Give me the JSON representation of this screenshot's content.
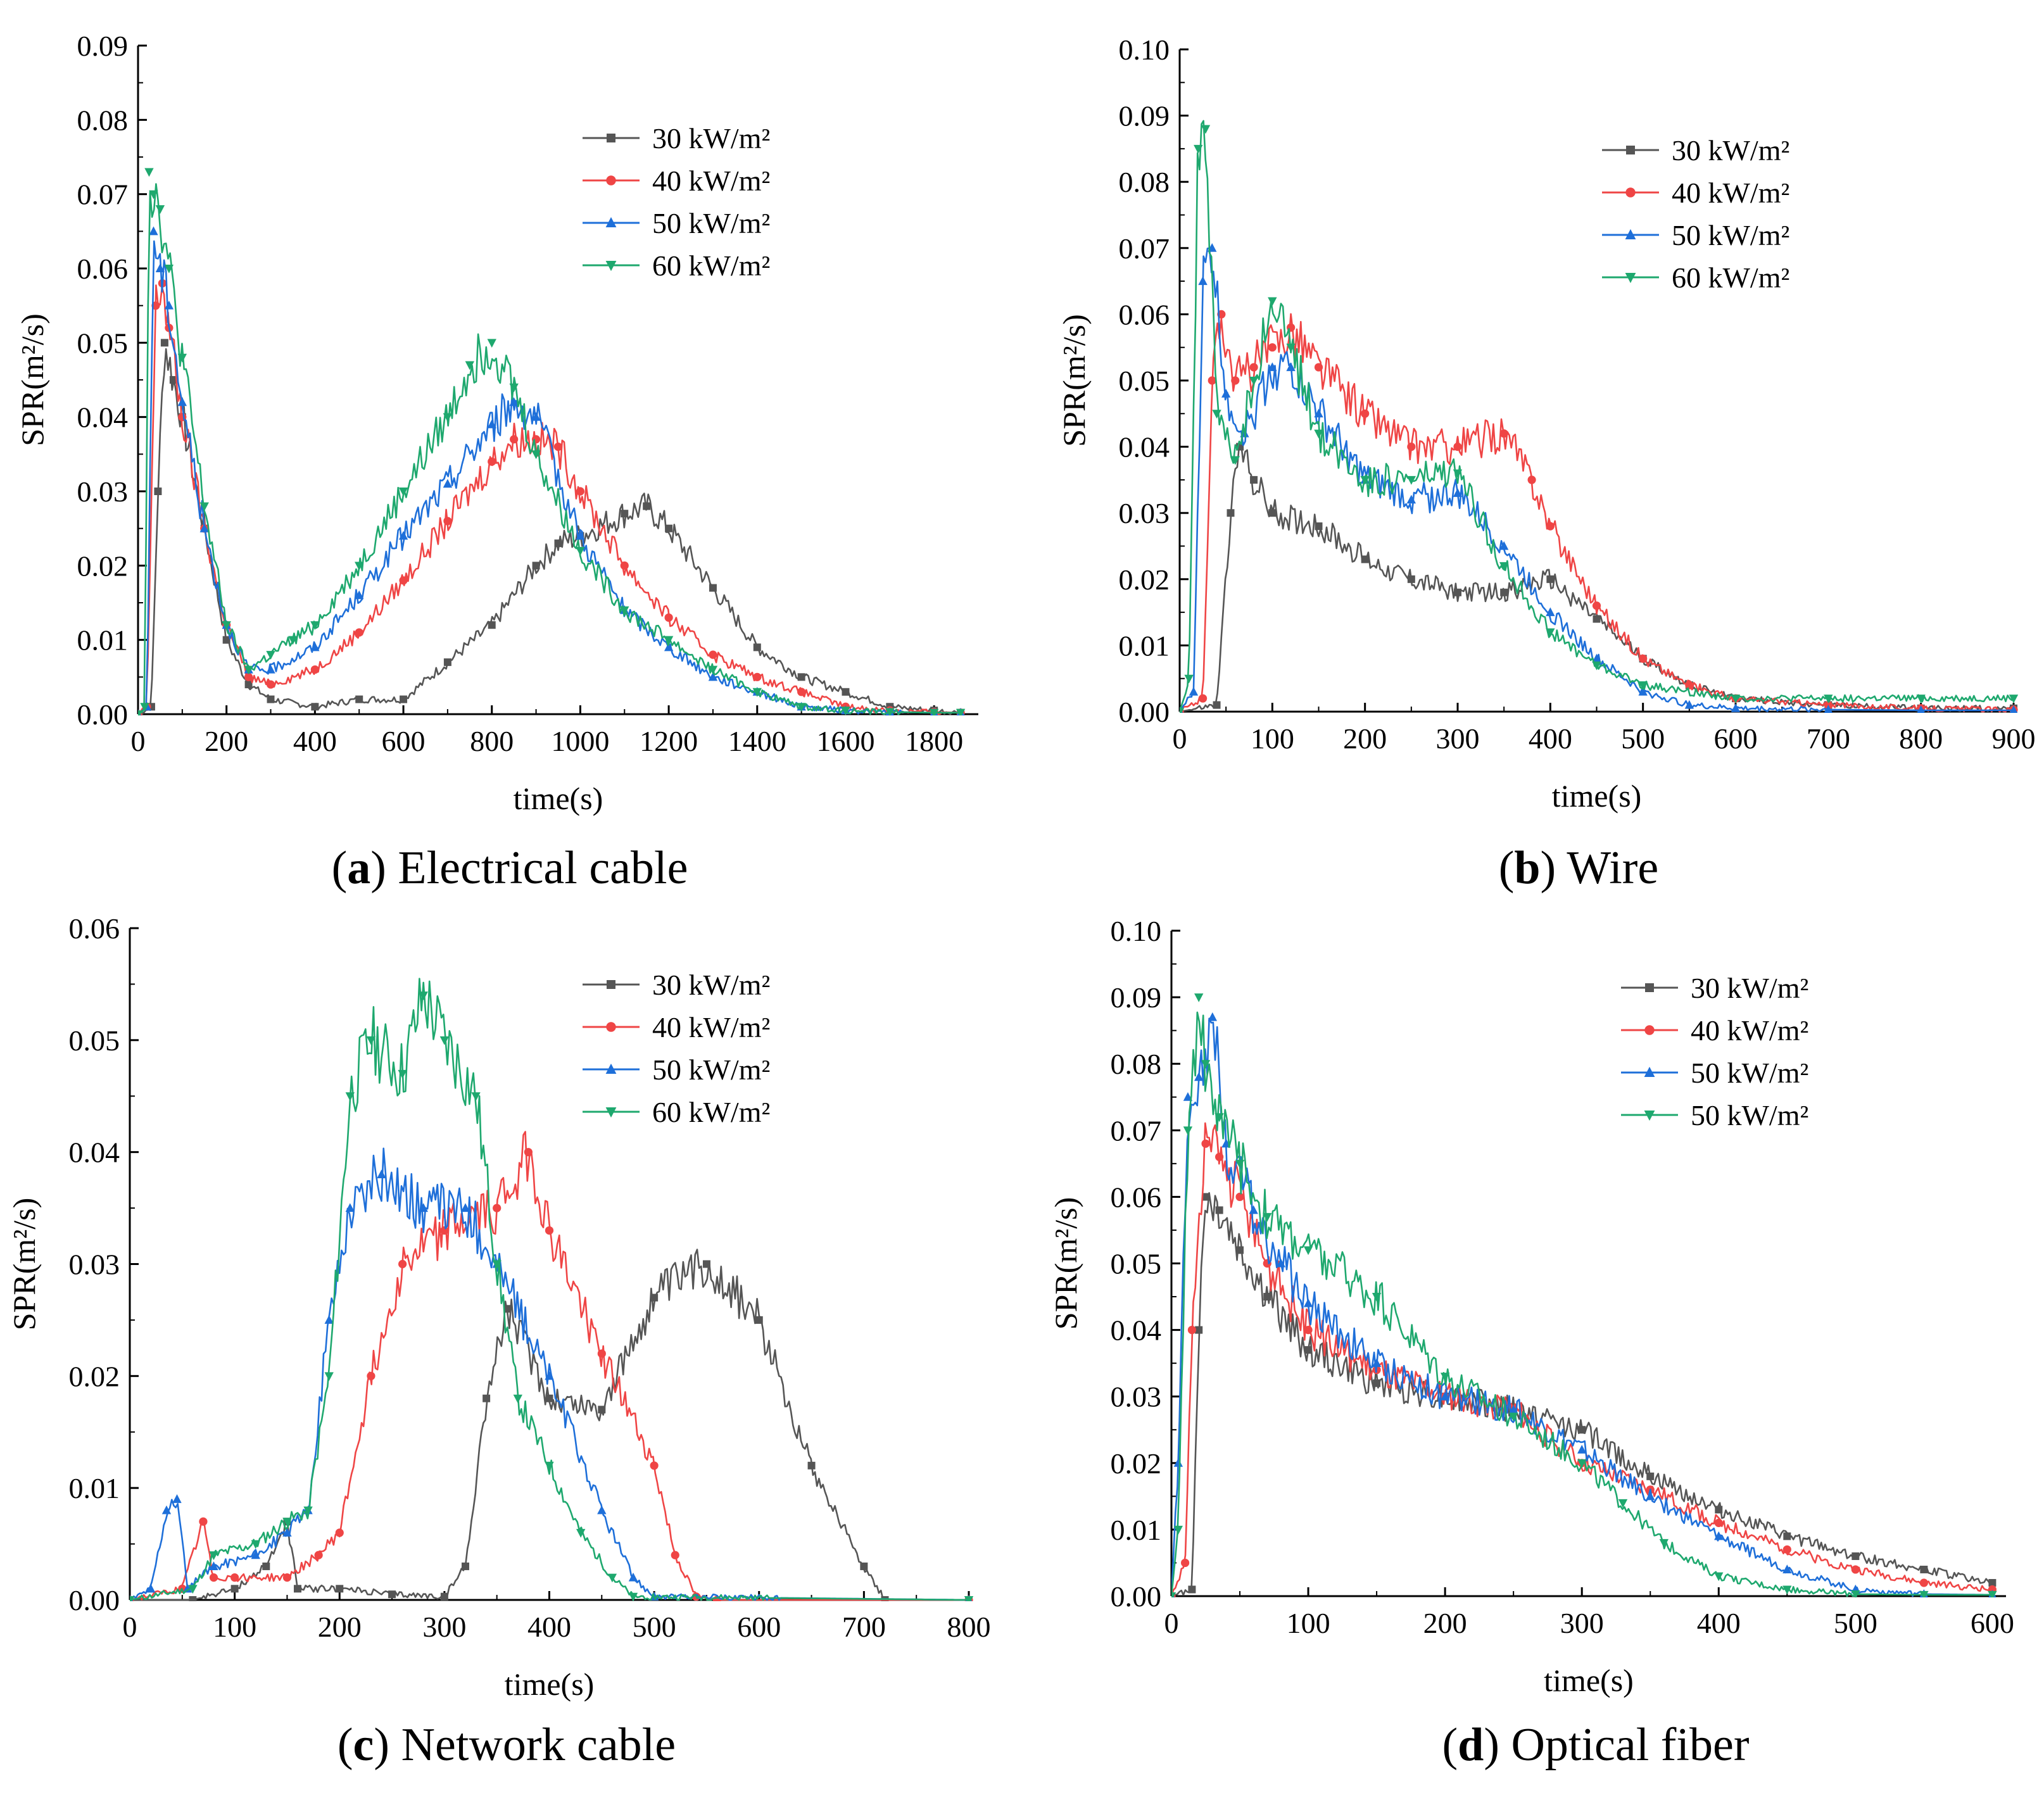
{
  "figure": {
    "panels": [
      "a",
      "b",
      "c",
      "d"
    ]
  },
  "chart_data": [
    {
      "id": "a",
      "type": "line",
      "caption_letter": "a",
      "caption_text": "Electrical cable",
      "xlabel": "time(s)",
      "ylabel": "SPR(m²/s)",
      "xlim": [
        0,
        1900
      ],
      "ylim": [
        0,
        0.09
      ],
      "xticks": [
        0,
        200,
        400,
        600,
        800,
        1000,
        1200,
        1400,
        1600,
        1800
      ],
      "yticks": [
        "0.00",
        "0.01",
        "0.02",
        "0.03",
        "0.04",
        "0.05",
        "0.06",
        "0.07",
        "0.08",
        "0.09"
      ],
      "legend": [
        "30 kW/m²",
        "40 kW/m²",
        "50 kW/m²",
        "60 kW/m²"
      ],
      "series": [
        {
          "name": "30 kW/m²",
          "color": "#555555",
          "marker": "square",
          "x": [
            0,
            30,
            45,
            60,
            80,
            100,
            150,
            200,
            250,
            300,
            400,
            500,
            600,
            700,
            800,
            900,
            950,
            1000,
            1100,
            1150,
            1200,
            1300,
            1400,
            1500,
            1600,
            1700,
            1800,
            1860
          ],
          "y": [
            0,
            0.001,
            0.03,
            0.05,
            0.045,
            0.04,
            0.025,
            0.01,
            0.004,
            0.002,
            0.001,
            0.002,
            0.002,
            0.007,
            0.012,
            0.02,
            0.023,
            0.024,
            0.027,
            0.028,
            0.025,
            0.017,
            0.009,
            0.005,
            0.003,
            0.001,
            0.0005,
            0.0002
          ]
        },
        {
          "name": "40 kW/m²",
          "color": "#ef4545",
          "marker": "circle",
          "x": [
            0,
            20,
            40,
            55,
            70,
            100,
            150,
            200,
            250,
            300,
            400,
            500,
            600,
            700,
            800,
            850,
            900,
            950,
            1000,
            1100,
            1200,
            1300,
            1400,
            1500,
            1600,
            1700,
            1800,
            1860
          ],
          "y": [
            0,
            0.001,
            0.055,
            0.058,
            0.052,
            0.04,
            0.025,
            0.012,
            0.005,
            0.004,
            0.006,
            0.011,
            0.018,
            0.026,
            0.034,
            0.037,
            0.037,
            0.036,
            0.03,
            0.02,
            0.013,
            0.008,
            0.005,
            0.003,
            0.001,
            0.0005,
            0.0003,
            0.0002
          ]
        },
        {
          "name": "50 kW/m²",
          "color": "#1e6fd9",
          "marker": "triangle-up",
          "x": [
            0,
            20,
            35,
            50,
            70,
            100,
            150,
            200,
            250,
            300,
            400,
            500,
            600,
            700,
            800,
            850,
            900,
            1000,
            1100,
            1200,
            1300,
            1400,
            1500,
            1600,
            1700,
            1800,
            1860
          ],
          "y": [
            0,
            0.001,
            0.065,
            0.06,
            0.055,
            0.042,
            0.025,
            0.012,
            0.006,
            0.006,
            0.009,
            0.016,
            0.024,
            0.031,
            0.039,
            0.042,
            0.04,
            0.024,
            0.014,
            0.009,
            0.005,
            0.003,
            0.001,
            0.0005,
            0.0003,
            0.0002,
            0.0002
          ]
        },
        {
          "name": "60 kW/m²",
          "color": "#1ea86e",
          "marker": "triangle-down",
          "x": [
            0,
            15,
            25,
            35,
            50,
            70,
            100,
            150,
            200,
            250,
            300,
            350,
            400,
            500,
            600,
            700,
            750,
            800,
            850,
            900,
            1000,
            1100,
            1200,
            1300,
            1400,
            1500,
            1600,
            1700,
            1800,
            1860
          ],
          "y": [
            0,
            0.001,
            0.073,
            0.07,
            0.068,
            0.06,
            0.048,
            0.028,
            0.012,
            0.006,
            0.008,
            0.01,
            0.012,
            0.02,
            0.03,
            0.04,
            0.047,
            0.05,
            0.044,
            0.035,
            0.022,
            0.014,
            0.01,
            0.006,
            0.003,
            0.001,
            0.0005,
            0.0003,
            0.0002,
            0.0002
          ]
        }
      ]
    },
    {
      "id": "b",
      "type": "line",
      "caption_letter": "b",
      "caption_text": "Wire",
      "xlabel": "time(s)",
      "ylabel": "SPR(m²/s)",
      "xlim": [
        0,
        900
      ],
      "ylim": [
        0,
        0.1
      ],
      "xticks": [
        0,
        100,
        200,
        300,
        400,
        500,
        600,
        700,
        800,
        900
      ],
      "yticks": [
        "0.00",
        "0.01",
        "0.02",
        "0.03",
        "0.04",
        "0.05",
        "0.06",
        "0.07",
        "0.08",
        "0.09",
        "0.10"
      ],
      "legend": [
        "30 kW/m²",
        "40 kW/m²",
        "50 kW/m²",
        "60 kW/m²"
      ],
      "series": [
        {
          "name": "30 kW/m²",
          "color": "#555555",
          "marker": "square",
          "x": [
            0,
            40,
            55,
            65,
            80,
            100,
            150,
            200,
            250,
            300,
            350,
            400,
            450,
            500,
            550,
            600,
            700,
            800,
            900
          ],
          "y": [
            0,
            0.001,
            0.03,
            0.04,
            0.035,
            0.03,
            0.028,
            0.023,
            0.02,
            0.018,
            0.018,
            0.02,
            0.014,
            0.008,
            0.004,
            0.002,
            0.001,
            0.0005,
            0.0005
          ]
        },
        {
          "name": "40 kW/m²",
          "color": "#ef4545",
          "marker": "circle",
          "x": [
            0,
            25,
            35,
            45,
            60,
            80,
            100,
            120,
            150,
            200,
            250,
            300,
            350,
            380,
            400,
            450,
            500,
            550,
            600,
            700,
            800,
            900
          ],
          "y": [
            0,
            0.002,
            0.05,
            0.06,
            0.05,
            0.052,
            0.055,
            0.058,
            0.052,
            0.045,
            0.04,
            0.04,
            0.042,
            0.035,
            0.028,
            0.016,
            0.008,
            0.004,
            0.002,
            0.001,
            0.0005,
            0.0003
          ]
        },
        {
          "name": "50 kW/m²",
          "color": "#1e6fd9",
          "marker": "triangle-up",
          "x": [
            0,
            15,
            25,
            35,
            50,
            70,
            100,
            120,
            150,
            200,
            250,
            300,
            350,
            400,
            450,
            500,
            550,
            600,
            700,
            800,
            900
          ],
          "y": [
            0,
            0.003,
            0.065,
            0.07,
            0.048,
            0.042,
            0.052,
            0.052,
            0.045,
            0.035,
            0.032,
            0.033,
            0.025,
            0.015,
            0.008,
            0.003,
            0.001,
            0.0005,
            0.0003,
            0.0002,
            0.0002
          ]
        },
        {
          "name": "60 kW/m²",
          "color": "#1ea86e",
          "marker": "triangle-down",
          "x": [
            0,
            10,
            20,
            28,
            40,
            60,
            80,
            100,
            120,
            150,
            200,
            250,
            300,
            350,
            400,
            450,
            500,
            600,
            700,
            800,
            900
          ],
          "y": [
            0,
            0.005,
            0.085,
            0.088,
            0.045,
            0.038,
            0.05,
            0.062,
            0.055,
            0.042,
            0.035,
            0.035,
            0.036,
            0.022,
            0.012,
            0.007,
            0.004,
            0.002,
            0.002,
            0.002,
            0.002
          ]
        }
      ]
    },
    {
      "id": "c",
      "type": "line",
      "caption_letter": "c",
      "caption_text": "Network cable",
      "xlabel": "time(s)",
      "ylabel": "SPR(m²/s)",
      "xlim": [
        0,
        800
      ],
      "ylim": [
        0,
        0.06
      ],
      "xticks": [
        0,
        100,
        200,
        300,
        400,
        500,
        600,
        700,
        800
      ],
      "yticks": [
        "0.00",
        "0.01",
        "0.02",
        "0.03",
        "0.04",
        "0.05",
        "0.06"
      ],
      "legend": [
        "30 kW/m²",
        "40 kW/m²",
        "50 kW/m²",
        "60 kW/m²"
      ],
      "series": [
        {
          "name": "30 kW/m²",
          "color": "#555555",
          "marker": "square",
          "x": [
            0,
            60,
            100,
            130,
            150,
            160,
            200,
            250,
            300,
            320,
            340,
            360,
            400,
            450,
            500,
            550,
            600,
            650,
            700,
            720,
            800
          ],
          "y": [
            0,
            0,
            0.001,
            0.003,
            0.007,
            0.001,
            0.001,
            0.0005,
            0.0003,
            0.003,
            0.018,
            0.026,
            0.018,
            0.017,
            0.027,
            0.03,
            0.025,
            0.012,
            0.003,
            0,
            0
          ]
        },
        {
          "name": "40 kW/m²",
          "color": "#ef4545",
          "marker": "circle",
          "x": [
            0,
            50,
            70,
            80,
            100,
            150,
            180,
            200,
            230,
            260,
            300,
            350,
            380,
            400,
            450,
            500,
            520,
            540,
            560,
            800
          ],
          "y": [
            0,
            0.001,
            0.007,
            0.002,
            0.002,
            0.002,
            0.004,
            0.006,
            0.02,
            0.03,
            0.033,
            0.035,
            0.04,
            0.033,
            0.022,
            0.012,
            0.004,
            0.0003,
            0,
            0
          ]
        },
        {
          "name": "50 kW/m²",
          "color": "#1e6fd9",
          "marker": "triangle-up",
          "x": [
            0,
            20,
            35,
            45,
            55,
            80,
            120,
            150,
            170,
            190,
            210,
            240,
            280,
            320,
            350,
            400,
            450,
            480,
            500,
            800
          ],
          "y": [
            0,
            0.001,
            0.008,
            0.009,
            0.001,
            0.003,
            0.004,
            0.006,
            0.008,
            0.025,
            0.035,
            0.038,
            0.035,
            0.035,
            0.03,
            0.02,
            0.008,
            0.002,
            0.0003,
            0
          ]
        },
        {
          "name": "60 kW/m²",
          "color": "#1ea86e",
          "marker": "triangle-down",
          "x": [
            0,
            60,
            80,
            120,
            150,
            170,
            190,
            210,
            230,
            260,
            280,
            300,
            330,
            350,
            370,
            400,
            430,
            460,
            480,
            800
          ],
          "y": [
            0,
            0.001,
            0.004,
            0.005,
            0.007,
            0.008,
            0.02,
            0.045,
            0.05,
            0.047,
            0.054,
            0.05,
            0.045,
            0.03,
            0.018,
            0.012,
            0.006,
            0.002,
            0.0003,
            0
          ]
        }
      ]
    },
    {
      "id": "d",
      "type": "line",
      "caption_letter": "d",
      "caption_text": "Optical fiber",
      "xlabel": "time(s)",
      "ylabel": "SPR(m²/s)",
      "xlim": [
        0,
        610
      ],
      "ylim": [
        0,
        0.1
      ],
      "xticks": [
        0,
        100,
        200,
        300,
        400,
        500,
        600
      ],
      "yticks": [
        "0.00",
        "0.01",
        "0.02",
        "0.03",
        "0.04",
        "0.05",
        "0.06",
        "0.07",
        "0.08",
        "0.09",
        "0.10"
      ],
      "legend": [
        "30 kW/m²",
        "40 kW/m²",
        "50 kW/m²",
        "50 kW/m²"
      ],
      "series": [
        {
          "name": "30 kW/m²",
          "color": "#555555",
          "marker": "square",
          "x": [
            0,
            15,
            20,
            25,
            35,
            50,
            70,
            100,
            150,
            200,
            250,
            300,
            350,
            400,
            450,
            500,
            550,
            600
          ],
          "y": [
            0,
            0.001,
            0.04,
            0.06,
            0.058,
            0.052,
            0.045,
            0.037,
            0.032,
            0.03,
            0.028,
            0.025,
            0.018,
            0.013,
            0.009,
            0.006,
            0.004,
            0.002
          ]
        },
        {
          "name": "40 kW/m²",
          "color": "#ef4545",
          "marker": "circle",
          "x": [
            0,
            10,
            15,
            25,
            35,
            50,
            70,
            100,
            150,
            200,
            250,
            300,
            350,
            400,
            450,
            500,
            550,
            600
          ],
          "y": [
            0,
            0.005,
            0.04,
            0.068,
            0.066,
            0.06,
            0.05,
            0.04,
            0.034,
            0.03,
            0.028,
            0.02,
            0.016,
            0.011,
            0.007,
            0.004,
            0.002,
            0.001
          ]
        },
        {
          "name": "50 kW/m²",
          "color": "#1e6fd9",
          "marker": "triangle-up",
          "x": [
            0,
            5,
            12,
            20,
            30,
            40,
            60,
            80,
            100,
            150,
            200,
            250,
            300,
            350,
            400,
            450,
            500,
            550,
            600
          ],
          "y": [
            0,
            0.02,
            0.075,
            0.078,
            0.087,
            0.068,
            0.058,
            0.05,
            0.044,
            0.035,
            0.03,
            0.028,
            0.022,
            0.015,
            0.009,
            0.004,
            0.001,
            0.0003,
            0.0002
          ]
        },
        {
          "name": "50 kW/m²",
          "color": "#1ea86e",
          "marker": "triangle-down",
          "x": [
            0,
            5,
            12,
            20,
            25,
            35,
            50,
            70,
            100,
            150,
            200,
            250,
            300,
            330,
            360,
            400,
            450,
            500,
            550,
            600
          ],
          "y": [
            0,
            0.01,
            0.07,
            0.09,
            0.08,
            0.072,
            0.065,
            0.057,
            0.052,
            0.045,
            0.033,
            0.027,
            0.02,
            0.014,
            0.008,
            0.003,
            0.001,
            0.0003,
            0.0002,
            0.0002
          ]
        }
      ]
    }
  ]
}
